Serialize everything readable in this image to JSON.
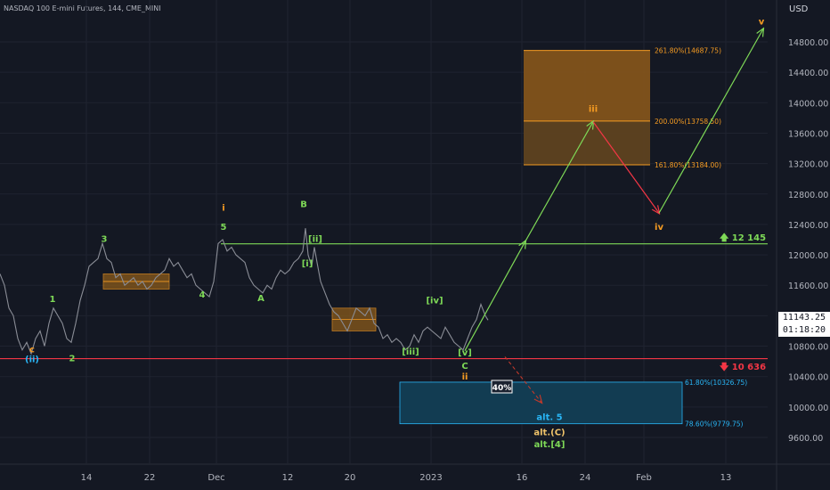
{
  "header": {
    "title": "NASDAQ 100 E-mini Futures, 144, CME_MINI",
    "currency": "USD"
  },
  "colors": {
    "bg": "#141823",
    "grid": "#1f2330",
    "price_line": "#8a8d96",
    "green": "#7ed957",
    "red": "#f23645",
    "orange": "#f59b22",
    "blue": "#29b6f6",
    "fib_box": "#8a5a1a",
    "blue_box": "#123c52"
  },
  "chart_data": {
    "type": "line",
    "title": "",
    "xlabel": "",
    "ylabel": "",
    "ylim": [
      9350,
      15150
    ],
    "x_ticks": [
      {
        "label": "14",
        "x": 0
      },
      {
        "label": "22",
        "x": 1
      },
      {
        "label": "Dec",
        "x": 2
      },
      {
        "label": "12",
        "x": 3
      },
      {
        "label": "20",
        "x": 4
      },
      {
        "label": "2023",
        "x": 5
      },
      {
        "label": "16",
        "x": 6
      },
      {
        "label": "24",
        "x": 7
      },
      {
        "label": "Feb",
        "x": 8
      },
      {
        "label": "13",
        "x": 9
      }
    ],
    "y_ticks": [
      9600,
      10000,
      10400,
      10800,
      11200,
      11600,
      12000,
      12400,
      12800,
      13200,
      13600,
      14000,
      14400,
      14800
    ],
    "y_tick_labels": [
      "9600.00",
      "10000.00",
      "10400.00",
      "10800.00",
      "11200.00",
      "11600.00",
      "12000.00",
      "12400.00",
      "12800.00",
      "13200.00",
      "13600.00",
      "14000.00",
      "14400.00",
      "14800.00"
    ],
    "price_series": {
      "name": "",
      "points": [
        [
          0,
          11750
        ],
        [
          5,
          11600
        ],
        [
          10,
          11300
        ],
        [
          15,
          11200
        ],
        [
          20,
          10900
        ],
        [
          25,
          10750
        ],
        [
          30,
          10850
        ],
        [
          35,
          10700
        ],
        [
          40,
          10900
        ],
        [
          45,
          11000
        ],
        [
          50,
          10800
        ],
        [
          55,
          11100
        ],
        [
          60,
          11300
        ],
        [
          65,
          11200
        ],
        [
          70,
          11100
        ],
        [
          75,
          10900
        ],
        [
          80,
          10850
        ],
        [
          85,
          11100
        ],
        [
          90,
          11400
        ],
        [
          95,
          11600
        ],
        [
          100,
          11850
        ],
        [
          105,
          11900
        ],
        [
          110,
          11950
        ],
        [
          115,
          12150
        ],
        [
          120,
          11950
        ],
        [
          125,
          11900
        ],
        [
          130,
          11700
        ],
        [
          135,
          11750
        ],
        [
          140,
          11600
        ],
        [
          145,
          11650
        ],
        [
          150,
          11700
        ],
        [
          155,
          11600
        ],
        [
          160,
          11650
        ],
        [
          165,
          11550
        ],
        [
          170,
          11600
        ],
        [
          175,
          11700
        ],
        [
          180,
          11750
        ],
        [
          185,
          11800
        ],
        [
          190,
          11950
        ],
        [
          195,
          11850
        ],
        [
          200,
          11900
        ],
        [
          205,
          11800
        ],
        [
          210,
          11700
        ],
        [
          215,
          11750
        ],
        [
          220,
          11600
        ],
        [
          225,
          11550
        ],
        [
          230,
          11500
        ],
        [
          235,
          11450
        ],
        [
          240,
          11650
        ],
        [
          245,
          12150
        ],
        [
          250,
          12200
        ],
        [
          255,
          12050
        ],
        [
          260,
          12100
        ],
        [
          265,
          12000
        ],
        [
          270,
          11950
        ],
        [
          275,
          11900
        ],
        [
          280,
          11700
        ],
        [
          285,
          11600
        ],
        [
          290,
          11550
        ],
        [
          295,
          11500
        ],
        [
          300,
          11600
        ],
        [
          305,
          11550
        ],
        [
          310,
          11700
        ],
        [
          315,
          11800
        ],
        [
          320,
          11750
        ],
        [
          325,
          11800
        ],
        [
          330,
          11900
        ],
        [
          335,
          11950
        ],
        [
          340,
          12050
        ],
        [
          343,
          12350
        ],
        [
          346,
          12000
        ],
        [
          350,
          11850
        ],
        [
          353,
          12100
        ],
        [
          356,
          11900
        ],
        [
          360,
          11650
        ],
        [
          365,
          11500
        ],
        [
          370,
          11350
        ],
        [
          375,
          11250
        ],
        [
          380,
          11200
        ],
        [
          385,
          11100
        ],
        [
          390,
          11000
        ],
        [
          395,
          11150
        ],
        [
          400,
          11300
        ],
        [
          405,
          11250
        ],
        [
          410,
          11200
        ],
        [
          415,
          11300
        ],
        [
          420,
          11100
        ],
        [
          425,
          11050
        ],
        [
          430,
          10900
        ],
        [
          435,
          10950
        ],
        [
          440,
          10850
        ],
        [
          445,
          10900
        ],
        [
          450,
          10850
        ],
        [
          455,
          10750
        ],
        [
          460,
          10800
        ],
        [
          465,
          10950
        ],
        [
          470,
          10850
        ],
        [
          475,
          11000
        ],
        [
          480,
          11050
        ],
        [
          485,
          11000
        ],
        [
          490,
          10950
        ],
        [
          495,
          10900
        ],
        [
          500,
          11050
        ],
        [
          505,
          10950
        ],
        [
          510,
          10850
        ],
        [
          515,
          10800
        ],
        [
          520,
          10750
        ],
        [
          525,
          10900
        ],
        [
          530,
          11050
        ],
        [
          535,
          11150
        ],
        [
          540,
          11350
        ],
        [
          545,
          11200
        ],
        [
          548,
          11143
        ]
      ]
    },
    "levels": [
      {
        "name": "resistance",
        "value": 12145,
        "label": "12 145",
        "color": "#7ed957"
      },
      {
        "name": "support",
        "value": 10636,
        "label": "10 636",
        "color": "#f23645"
      }
    ],
    "fib_levels": [
      {
        "label": "261.80%(14687.75)",
        "value": 14687.75
      },
      {
        "label": "200.00%(13758.50)",
        "value": 13758.5
      },
      {
        "label": "161.80%(13184.00)",
        "value": 13184.0
      },
      {
        "label": "61.80%(10326.75)",
        "value": 10326.75
      },
      {
        "label": "78.60%(9779.75)",
        "value": 9779.75
      }
    ],
    "current_price": "11143.25",
    "countdown": "01:18:20",
    "boxes": [
      {
        "name": "consolidation-1",
        "x0": 116,
        "x1": 190,
        "y0": 11550,
        "y1": 11750
      },
      {
        "name": "consolidation-2",
        "x0": 373,
        "x1": 422,
        "y0": 11000,
        "y1": 11300
      }
    ],
    "percent_badge": "40%",
    "wave_labels": [
      {
        "text": "c",
        "x": 36,
        "y": 10720,
        "color": "#f59b22"
      },
      {
        "text": "(ii)",
        "x": 36,
        "y": 10590,
        "color": "#29b6f6"
      },
      {
        "text": "1",
        "x": 59,
        "y": 11380,
        "color": "#7ed957"
      },
      {
        "text": "2",
        "x": 81,
        "y": 10600,
        "color": "#7ed957"
      },
      {
        "text": "3",
        "x": 117,
        "y": 12170,
        "color": "#7ed957"
      },
      {
        "text": "4",
        "x": 227,
        "y": 11440,
        "color": "#7ed957"
      },
      {
        "text": "i",
        "x": 251,
        "y": 12580,
        "color": "#f59b22"
      },
      {
        "text": "5",
        "x": 251,
        "y": 12330,
        "color": "#7ed957"
      },
      {
        "text": "A",
        "x": 293,
        "y": 11390,
        "color": "#7ed957"
      },
      {
        "text": "B",
        "x": 341,
        "y": 12630,
        "color": "#7ed957"
      },
      {
        "text": "[ii]",
        "x": 354,
        "y": 12170,
        "color": "#7ed957"
      },
      {
        "text": "[i]",
        "x": 345,
        "y": 11850,
        "color": "#7ed957"
      },
      {
        "text": "[iii]",
        "x": 461,
        "y": 10690,
        "color": "#7ed957"
      },
      {
        "text": "[iv]",
        "x": 488,
        "y": 11360,
        "color": "#7ed957"
      },
      {
        "text": "[v]",
        "x": 522,
        "y": 10680,
        "color": "#7ed957"
      },
      {
        "text": "C",
        "x": 522,
        "y": 10500,
        "color": "#7ed957"
      },
      {
        "text": "ii",
        "x": 522,
        "y": 10360,
        "color": "#f59b22"
      },
      {
        "text": "iii",
        "x": 666,
        "y": 13880,
        "color": "#f59b22"
      },
      {
        "text": "iv",
        "x": 740,
        "y": 12330,
        "color": "#f59b22"
      },
      {
        "text": "v",
        "x": 855,
        "y": 15030,
        "color": "#f59b22"
      },
      {
        "text": "alt. 5",
        "x": 617,
        "y": 9830,
        "color": "#29b6f6"
      },
      {
        "text": "alt.(C)",
        "x": 617,
        "y": 9630,
        "color": "#f0c36a"
      },
      {
        "text": "alt.[4]",
        "x": 617,
        "y": 9470,
        "color": "#7ed957"
      }
    ]
  }
}
